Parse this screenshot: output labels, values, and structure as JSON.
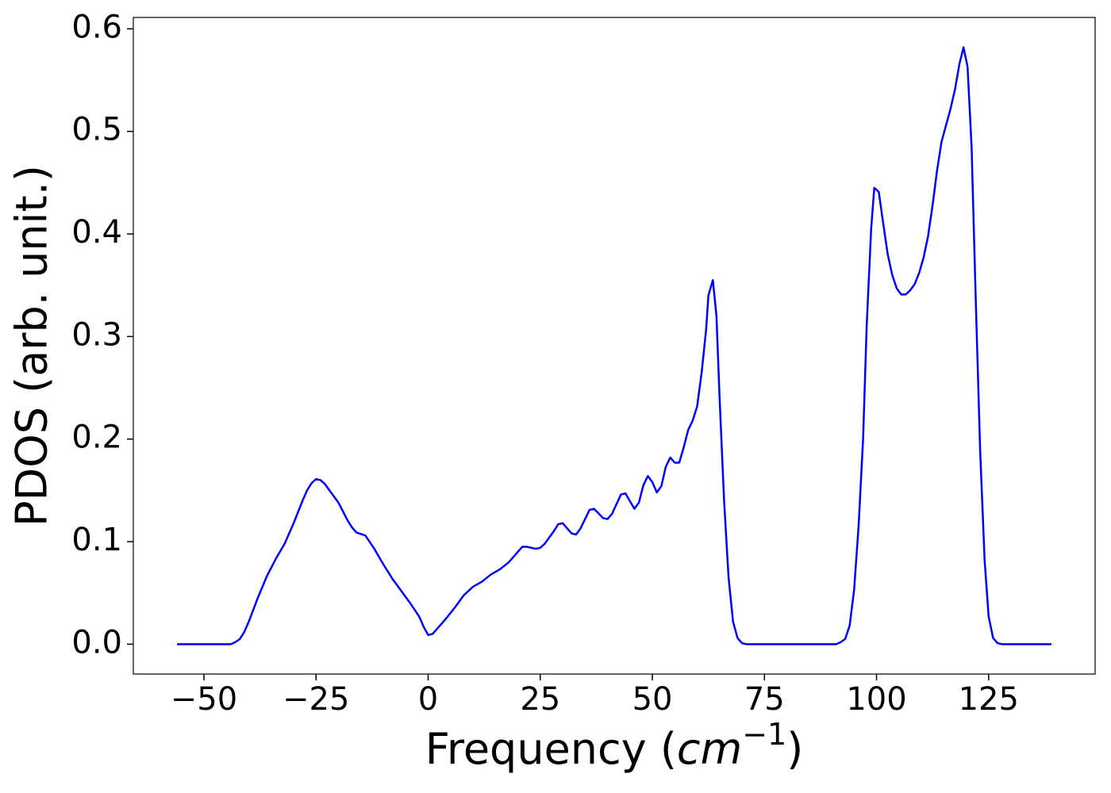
{
  "chart_data": {
    "type": "line",
    "xlabel_parts": [
      "Frequency (",
      "cm",
      "−1",
      ")"
    ],
    "ylabel": "PDOS (arb. unit.)",
    "x": [
      -56,
      -44,
      -43,
      -42,
      -41,
      -40,
      -38,
      -36,
      -34,
      -32,
      -30,
      -28,
      -27,
      -26,
      -25,
      -24,
      -23,
      -22,
      -20,
      -18,
      -17,
      -16,
      -14,
      -12,
      -10,
      -8,
      -6,
      -4,
      -2,
      -1,
      0,
      1,
      2,
      4,
      6,
      8,
      10,
      12,
      14,
      16,
      18,
      20,
      21,
      22,
      24,
      25,
      26,
      28,
      29,
      30,
      32,
      33,
      34,
      36,
      37,
      39,
      40,
      41,
      43,
      44,
      46,
      47,
      48,
      49,
      50,
      51,
      52,
      53,
      54,
      55,
      56,
      57,
      58,
      59,
      60,
      61,
      62,
      62.5,
      63.5,
      64.3,
      65,
      66,
      67,
      68,
      69,
      70,
      71,
      91,
      92,
      93,
      94,
      95,
      96,
      97,
      97.8,
      98.8,
      99.5,
      100.5,
      101.5,
      102.5,
      103.5,
      104.5,
      105.5,
      106.5,
      107.5,
      108.5,
      109.5,
      110.5,
      111.5,
      112.5,
      113.5,
      114.5,
      115.5,
      116.5,
      117.5,
      118.5,
      119.4,
      120.3,
      121.2,
      122.1,
      123.1,
      124.1,
      125,
      126,
      127,
      128,
      139
    ],
    "series": [
      {
        "color": "#0000ff",
        "values": [
          0,
          0,
          0.002,
          0.005,
          0.012,
          0.022,
          0.045,
          0.066,
          0.083,
          0.098,
          0.118,
          0.14,
          0.15,
          0.157,
          0.161,
          0.16,
          0.156,
          0.15,
          0.138,
          0.121,
          0.114,
          0.109,
          0.106,
          0.093,
          0.078,
          0.064,
          0.052,
          0.04,
          0.027,
          0.017,
          0.009,
          0.01,
          0.015,
          0.025,
          0.036,
          0.048,
          0.056,
          0.061,
          0.068,
          0.073,
          0.08,
          0.09,
          0.095,
          0.095,
          0.093,
          0.094,
          0.098,
          0.11,
          0.117,
          0.118,
          0.108,
          0.107,
          0.113,
          0.131,
          0.132,
          0.123,
          0.122,
          0.127,
          0.146,
          0.147,
          0.132,
          0.138,
          0.155,
          0.164,
          0.158,
          0.148,
          0.154,
          0.173,
          0.182,
          0.177,
          0.177,
          0.192,
          0.209,
          0.218,
          0.232,
          0.265,
          0.307,
          0.34,
          0.355,
          0.32,
          0.24,
          0.14,
          0.065,
          0.022,
          0.006,
          0.001,
          0,
          0,
          0.002,
          0.005,
          0.018,
          0.053,
          0.115,
          0.2,
          0.31,
          0.405,
          0.445,
          0.441,
          0.41,
          0.38,
          0.36,
          0.347,
          0.341,
          0.341,
          0.345,
          0.351,
          0.362,
          0.377,
          0.398,
          0.428,
          0.462,
          0.49,
          0.506,
          0.522,
          0.541,
          0.566,
          0.582,
          0.563,
          0.485,
          0.34,
          0.19,
          0.082,
          0.027,
          0.006,
          0.001,
          0,
          0
        ]
      }
    ],
    "xlim": [
      -65.75,
      148.75
    ],
    "xticks": [
      {
        "value": -50,
        "label": "−50"
      },
      {
        "value": -25,
        "label": "−25"
      },
      0,
      25,
      50,
      75,
      100,
      125
    ],
    "ylim": [
      -0.0291,
      0.6111
    ],
    "yticks": [
      {
        "value": 0,
        "label": "0.0"
      },
      0.1,
      0.2,
      0.3,
      0.4,
      0.5,
      0.6
    ],
    "grid": false
  }
}
